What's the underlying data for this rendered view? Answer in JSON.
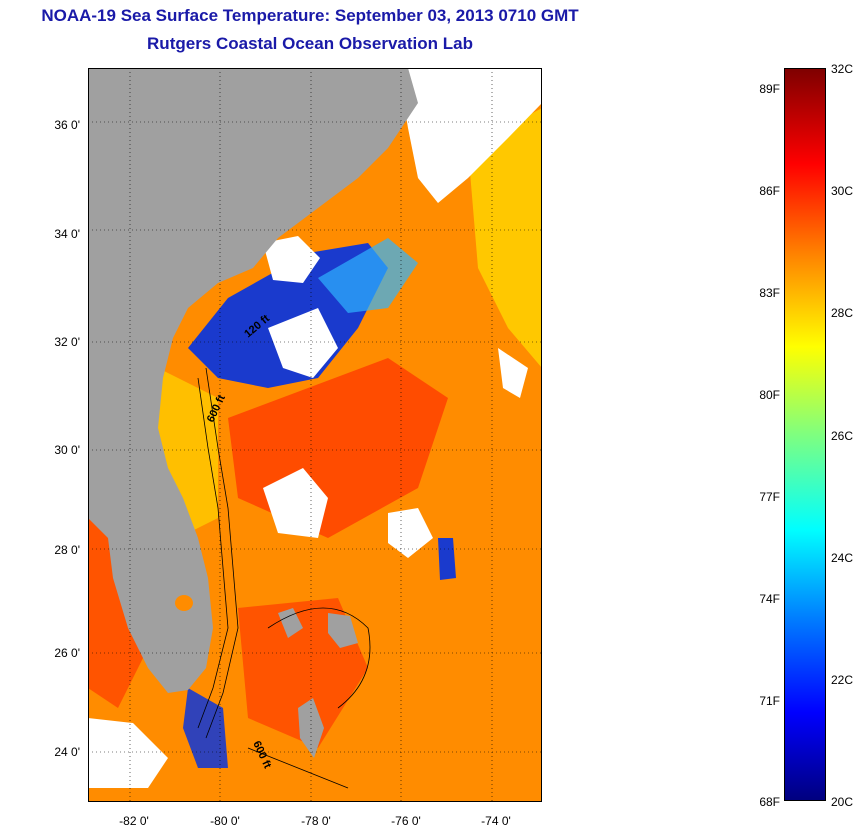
{
  "title": {
    "line1": "NOAA-19 Sea Surface Temperature:  September 03, 2013 0710 GMT",
    "line2": "Rutgers Coastal Ocean Observation Lab"
  },
  "map": {
    "lat_labels": [
      "36 0'",
      "34 0'",
      "32 0'",
      "30 0'",
      "28 0'",
      "26 0'",
      "24 0'"
    ],
    "lon_labels": [
      "-82 0'",
      "-80 0'",
      "-78 0'",
      "-76 0'",
      "-74 0'"
    ],
    "contour_labels": [
      "120 ft",
      "600 ft",
      "600 ft"
    ],
    "colors": {
      "land": "#a0a0a0",
      "cloud": "#ffffff",
      "warm_water": "#ff8c00",
      "hot_water": "#ff3c00",
      "cool_water": "#1a3acd",
      "mid_water": "#ffd200"
    }
  },
  "colorbar": {
    "f_labels": [
      "89F",
      "86F",
      "83F",
      "80F",
      "77F",
      "74F",
      "71F",
      "68F"
    ],
    "c_labels": [
      "32C",
      "30C",
      "28C",
      "26C",
      "24C",
      "22C",
      "20C"
    ],
    "range_c": [
      20,
      32
    ],
    "range_f": [
      68,
      89.6
    ]
  }
}
